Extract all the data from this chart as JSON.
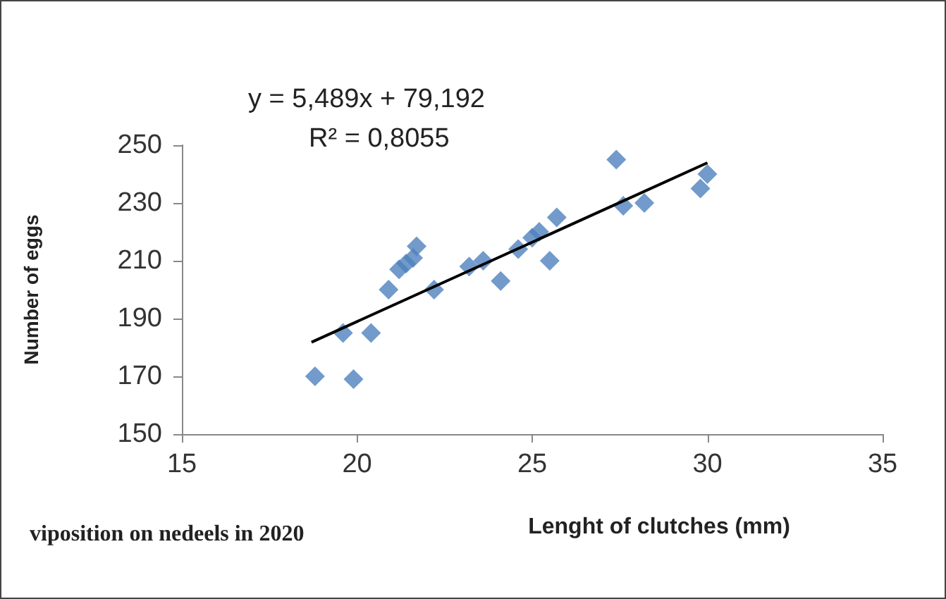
{
  "chart_data": {
    "type": "scatter",
    "xlabel": "Lenght of clutches (mm)",
    "ylabel": "Number of eggs",
    "annotations": [
      "y = 5,489x + 79,192",
      "R² = 0,8055",
      "viposition on nedeels in 2020"
    ],
    "series": [
      {
        "color": "#4f81bd",
        "marker": "diamond",
        "x": [
          18.8,
          19.6,
          19.9,
          20.4,
          20.9,
          21.2,
          21.4,
          21.6,
          21.7,
          22.2,
          23.2,
          23.6,
          24.1,
          24.6,
          25.0,
          25.2,
          25.5,
          25.7,
          27.4,
          27.6,
          28.2,
          29.8,
          30.0
        ],
        "values": [
          170,
          185,
          169,
          185,
          200,
          207,
          209,
          211,
          215,
          200,
          208,
          210,
          203,
          214,
          218,
          220,
          210,
          225,
          245,
          229,
          230,
          235,
          240
        ]
      },
      {
        "type": "line",
        "color": "#000000",
        "x": [
          18.7,
          30.0
        ],
        "values": [
          181.8,
          243.9
        ]
      }
    ],
    "xlim": [
      15,
      35
    ],
    "xticks": [
      15,
      20,
      25,
      30,
      35
    ],
    "ylim": [
      150,
      250
    ],
    "yticks": [
      150,
      170,
      190,
      210,
      230,
      250
    ],
    "grid": false
  }
}
